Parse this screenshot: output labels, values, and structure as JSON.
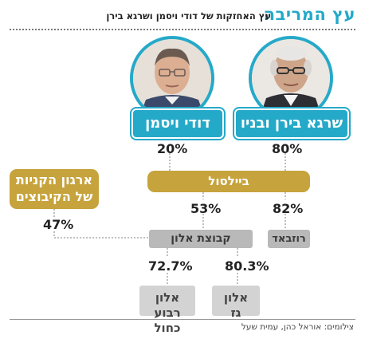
{
  "header": {
    "title": "עץ המריבה",
    "subtitle": "עץ האחזקות של דודי ויסמן ושרגא בירן"
  },
  "owners": [
    {
      "name": "שרגא בירן ובניו",
      "stake": "80%"
    },
    {
      "name": "דודי ויסמן",
      "stake": "20%"
    }
  ],
  "kibbutz": {
    "line1": "ארגון הקניות",
    "line2": "של הקיבוצים",
    "stake": "47%"
  },
  "holding": {
    "name": "ביילסול",
    "to_alon_stake": "53%",
    "to_rozbad_stake": "82%"
  },
  "alon_group": {
    "name": "קבוצת אלון"
  },
  "rozbad": {
    "name": "רוזבאד"
  },
  "subsidiaries": [
    {
      "line1": "אלון",
      "line2": "גז",
      "stake": "80.3%"
    },
    {
      "line1": "אלון",
      "line2": "רבוע כחול",
      "stake": "72.7%"
    }
  ],
  "credit": "צילומים: אוראל כהן, עמית שעל",
  "colors": {
    "accent_blue": "#25a9c9",
    "gold": "#c6a33c",
    "gray_box": "#b9b9b9",
    "gray_light": "#d3d3d3"
  }
}
